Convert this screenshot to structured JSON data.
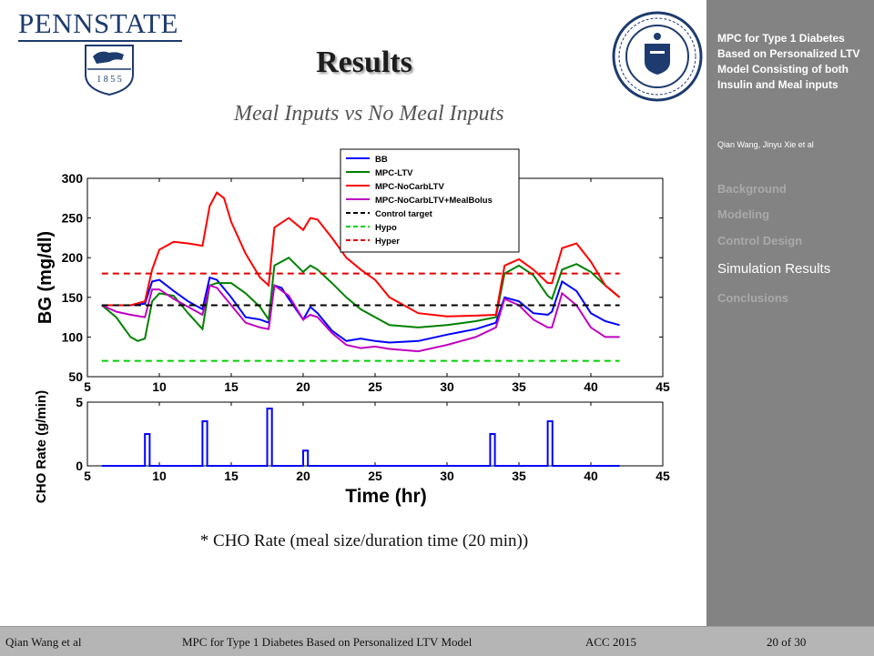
{
  "slide": {
    "logo_text": "PENNSTATE",
    "logo_year": "1 8 5 5",
    "title": "Results",
    "subtitle": "Meal Inputs vs No Meal Inputs",
    "footnote": "* CHO Rate (meal size/duration time (20 min))"
  },
  "sidebar": {
    "title": "MPC for Type 1 Diabetes Based on Personalized LTV Model Consisting of both Insulin and Meal inputs",
    "authors": "Qian Wang, Jinyu Xie et al",
    "items": [
      {
        "label": "Background"
      },
      {
        "label": "Modeling"
      },
      {
        "label": "Control Design"
      },
      {
        "label": "Simulation Results"
      },
      {
        "label": "Conclusions"
      }
    ]
  },
  "footer": {
    "author": "Qian Wang et al",
    "talk_title": "MPC for Type 1 Diabetes Based on Personalized LTV Model",
    "venue": "ACC 2015",
    "page": "20 of 30"
  },
  "chart_data": [
    {
      "type": "line",
      "ylabel": "BG (mg/dl)",
      "xlim": [
        5,
        45
      ],
      "ylim": [
        50,
        300
      ],
      "xticks": [
        5,
        10,
        15,
        20,
        25,
        30,
        35,
        40,
        45
      ],
      "yticks": [
        50,
        100,
        150,
        200,
        250,
        300
      ],
      "legend_position": "top-right",
      "series": [
        {
          "name": "BB",
          "color": "#0000ff",
          "style": "solid",
          "x": [
            6,
            8,
            9,
            9.5,
            10,
            11,
            12,
            13,
            13.5,
            14,
            15,
            16,
            17,
            17.6,
            18,
            18.5,
            19,
            20,
            20.5,
            21,
            22,
            23,
            24,
            25,
            26,
            28,
            30,
            32,
            33.4,
            34,
            35,
            36,
            37,
            37.3,
            38,
            39,
            40,
            41,
            42
          ],
          "y": [
            140,
            140,
            142,
            170,
            172,
            158,
            145,
            135,
            175,
            172,
            150,
            125,
            122,
            118,
            165,
            162,
            148,
            122,
            138,
            130,
            108,
            95,
            98,
            95,
            93,
            95,
            103,
            110,
            118,
            150,
            145,
            130,
            128,
            132,
            170,
            158,
            130,
            120,
            115
          ]
        },
        {
          "name": "MPC-LTV",
          "color": "#008000",
          "style": "solid",
          "x": [
            6,
            7,
            8,
            8.5,
            9,
            9.5,
            10,
            11,
            12,
            13,
            13.5,
            14,
            15,
            16,
            17,
            17.6,
            18,
            19,
            20,
            20.5,
            21,
            22,
            23,
            24,
            25,
            26,
            28,
            30,
            32,
            33.4,
            34,
            35,
            36,
            37,
            37.3,
            38,
            39,
            40,
            41,
            42
          ],
          "y": [
            140,
            125,
            100,
            95,
            98,
            145,
            155,
            152,
            130,
            110,
            165,
            168,
            168,
            155,
            138,
            122,
            190,
            200,
            182,
            190,
            185,
            168,
            150,
            135,
            125,
            115,
            112,
            115,
            120,
            125,
            180,
            190,
            178,
            152,
            148,
            185,
            192,
            182,
            165,
            150
          ]
        },
        {
          "name": "MPC-NoCarbLTV",
          "color": "#ff0000",
          "style": "solid",
          "x": [
            6,
            8,
            9,
            9.5,
            10,
            11,
            12,
            13,
            13.5,
            14,
            14.5,
            15,
            16,
            17,
            17.6,
            18,
            19,
            20,
            20.5,
            21,
            22,
            23,
            24,
            25,
            26,
            28,
            30,
            32,
            33.4,
            34,
            35,
            36,
            37,
            37.3,
            38,
            39,
            40,
            41,
            42
          ],
          "y": [
            140,
            140,
            145,
            185,
            210,
            220,
            218,
            215,
            265,
            282,
            275,
            245,
            205,
            175,
            165,
            238,
            250,
            235,
            250,
            248,
            225,
            200,
            185,
            172,
            150,
            130,
            126,
            127,
            128,
            190,
            198,
            185,
            168,
            168,
            212,
            218,
            195,
            165,
            150
          ]
        },
        {
          "name": "MPC-NoCarbLTV+MealBolus",
          "color": "#bf00bf",
          "style": "solid",
          "x": [
            6,
            7,
            8,
            9,
            9.5,
            10,
            11,
            12,
            13,
            13.5,
            14,
            15,
            16,
            17,
            17.6,
            18,
            19,
            20,
            20.5,
            21,
            22,
            23,
            24,
            25,
            26,
            28,
            30,
            32,
            33.4,
            34,
            35,
            36,
            37,
            37.3,
            38,
            39,
            40,
            41,
            42
          ],
          "y": [
            140,
            132,
            128,
            125,
            160,
            160,
            148,
            138,
            128,
            165,
            162,
            140,
            118,
            112,
            110,
            165,
            152,
            122,
            128,
            125,
            105,
            90,
            86,
            88,
            85,
            82,
            90,
            100,
            112,
            148,
            140,
            122,
            112,
            112,
            155,
            140,
            112,
            100,
            100
          ]
        },
        {
          "name": "Control target",
          "color": "#000000",
          "style": "dashed",
          "x": [
            6,
            42
          ],
          "y": [
            140,
            140
          ]
        },
        {
          "name": "Hypo",
          "color": "#00d000",
          "style": "dashed",
          "x": [
            6,
            42
          ],
          "y": [
            70,
            70
          ]
        },
        {
          "name": "Hyper",
          "color": "#e00000",
          "style": "dashed",
          "x": [
            6,
            42
          ],
          "y": [
            180,
            180
          ]
        }
      ]
    },
    {
      "type": "line",
      "xlabel": "Time (hr)",
      "ylabel": "CHO Rate (g/min)",
      "xlim": [
        5,
        45
      ],
      "ylim": [
        0,
        5
      ],
      "xticks": [
        5,
        10,
        15,
        20,
        25,
        30,
        35,
        40,
        45
      ],
      "yticks": [
        0,
        5
      ],
      "series": [
        {
          "name": "",
          "color": "#0000ff",
          "x": [
            6,
            9,
            9,
            9.33,
            9.33,
            13,
            13,
            13.33,
            13.33,
            17.5,
            17.5,
            17.83,
            17.83,
            20,
            20,
            20.33,
            20.33,
            33,
            33,
            33.33,
            33.33,
            37,
            37,
            37.33,
            37.33,
            42
          ],
          "y": [
            0,
            0,
            2.5,
            2.5,
            0,
            0,
            3.5,
            3.5,
            0,
            0,
            4.5,
            4.5,
            0,
            0,
            1.2,
            1.2,
            0,
            0,
            2.5,
            2.5,
            0,
            0,
            3.5,
            3.5,
            0,
            0
          ]
        }
      ]
    }
  ]
}
